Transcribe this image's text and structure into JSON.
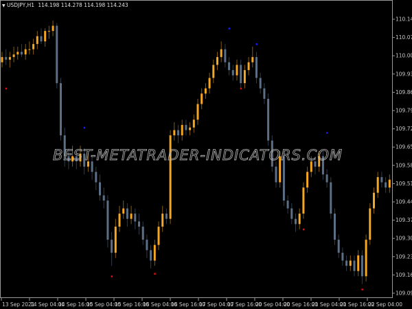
{
  "header": {
    "dropdown_icon": "triangle-down-icon",
    "symbol": "USDJPY,H1",
    "open": "114.198",
    "high": "114.278",
    "low": "114.198",
    "close": "114.243"
  },
  "watermark": "BEST-METATRADER-INDICATORS.COM",
  "colors": {
    "background": "#000000",
    "bull": "#f5a623",
    "bear": "#5b6f87",
    "axis": "#9a9a9a",
    "high_marker": "#1a1aff",
    "low_marker": "#e01010"
  },
  "chart_data": {
    "type": "candlestick",
    "title": "",
    "ylim": [
      109.07,
      110.17
    ],
    "y_ticks": [
      "110.145",
      "110.075",
      "110.005",
      "109.935",
      "109.865",
      "109.795",
      "109.725",
      "109.655",
      "109.585",
      "109.515",
      "109.445",
      "109.375",
      "109.305",
      "109.235",
      "109.165",
      "109.095"
    ],
    "x_ticks": [
      "13 Sep 2021",
      "14 Sep 04:00",
      "14 Sep 16:00",
      "15 Sep 04:00",
      "15 Sep 16:00",
      "16 Sep 04:00",
      "16 Sep 16:00",
      "17 Sep 04:00",
      "17 Sep 16:00",
      "20 Sep 04:00",
      "20 Sep 16:00",
      "21 Sep 04:00",
      "21 Sep 16:00",
      "22 Sep 04:00"
    ],
    "ohlc": [
      [
        109.98,
        110.02,
        109.96,
        110.0
      ],
      [
        110.0,
        110.03,
        109.97,
        109.99
      ],
      [
        109.99,
        110.02,
        109.96,
        110.0
      ],
      [
        110.0,
        110.04,
        109.98,
        110.01
      ],
      [
        110.01,
        110.04,
        109.99,
        110.02
      ],
      [
        110.02,
        110.05,
        110.0,
        110.01
      ],
      [
        110.01,
        110.05,
        109.99,
        110.03
      ],
      [
        110.03,
        110.06,
        110.01,
        110.03
      ],
      [
        110.03,
        110.07,
        110.01,
        110.05
      ],
      [
        110.05,
        110.1,
        110.03,
        110.08
      ],
      [
        110.08,
        110.11,
        110.05,
        110.06
      ],
      [
        110.06,
        110.11,
        110.04,
        110.1
      ],
      [
        110.1,
        110.12,
        110.07,
        110.1
      ],
      [
        110.1,
        110.14,
        110.08,
        110.12
      ],
      [
        110.12,
        110.13,
        109.88,
        109.9
      ],
      [
        109.9,
        109.92,
        109.68,
        109.7
      ],
      [
        109.7,
        109.73,
        109.58,
        109.62
      ],
      [
        109.62,
        109.65,
        109.57,
        109.6
      ],
      [
        109.6,
        109.66,
        109.58,
        109.62
      ],
      [
        109.62,
        109.64,
        109.57,
        109.6
      ],
      [
        109.6,
        109.66,
        109.58,
        109.63
      ],
      [
        109.63,
        109.65,
        109.55,
        109.58
      ],
      [
        109.58,
        109.63,
        109.56,
        109.6
      ],
      [
        109.6,
        109.62,
        109.53,
        109.56
      ],
      [
        109.56,
        109.58,
        109.49,
        109.52
      ],
      [
        109.52,
        109.55,
        109.45,
        109.47
      ],
      [
        109.47,
        109.5,
        109.42,
        109.45
      ],
      [
        109.45,
        109.47,
        109.27,
        109.3
      ],
      [
        109.3,
        109.33,
        109.2,
        109.25
      ],
      [
        109.25,
        109.38,
        109.23,
        109.35
      ],
      [
        109.35,
        109.43,
        109.33,
        109.4
      ],
      [
        109.4,
        109.45,
        109.38,
        109.42
      ],
      [
        109.42,
        109.44,
        109.35,
        109.38
      ],
      [
        109.38,
        109.43,
        109.36,
        109.4
      ],
      [
        109.4,
        109.42,
        109.34,
        109.37
      ],
      [
        109.37,
        109.4,
        109.32,
        109.35
      ],
      [
        109.35,
        109.37,
        109.28,
        109.3
      ],
      [
        109.3,
        109.32,
        109.23,
        109.26
      ],
      [
        109.26,
        109.28,
        109.19,
        109.22
      ],
      [
        109.22,
        109.3,
        109.2,
        109.28
      ],
      [
        109.28,
        109.37,
        109.26,
        109.35
      ],
      [
        109.35,
        109.43,
        109.33,
        109.4
      ],
      [
        109.4,
        109.42,
        109.36,
        109.38
      ],
      [
        109.38,
        109.72,
        109.36,
        109.7
      ],
      [
        109.7,
        109.75,
        109.68,
        109.72
      ],
      [
        109.72,
        109.74,
        109.67,
        109.7
      ],
      [
        109.7,
        109.76,
        109.68,
        109.74
      ],
      [
        109.74,
        109.76,
        109.7,
        109.72
      ],
      [
        109.72,
        109.75,
        109.7,
        109.73
      ],
      [
        109.73,
        109.78,
        109.71,
        109.76
      ],
      [
        109.76,
        109.84,
        109.74,
        109.82
      ],
      [
        109.82,
        109.88,
        109.8,
        109.86
      ],
      [
        109.86,
        109.9,
        109.84,
        109.88
      ],
      [
        109.88,
        109.94,
        109.86,
        109.92
      ],
      [
        109.92,
        109.99,
        109.9,
        109.97
      ],
      [
        109.97,
        110.02,
        109.95,
        110.0
      ],
      [
        110.0,
        110.06,
        109.98,
        110.03
      ],
      [
        110.03,
        110.05,
        109.96,
        109.98
      ],
      [
        109.98,
        110.0,
        109.93,
        109.95
      ],
      [
        109.95,
        109.97,
        109.91,
        109.93
      ],
      [
        109.93,
        109.99,
        109.91,
        109.97
      ],
      [
        109.97,
        109.99,
        109.88,
        109.9
      ],
      [
        109.9,
        109.97,
        109.88,
        109.95
      ],
      [
        109.95,
        110.0,
        109.93,
        109.98
      ],
      [
        109.98,
        110.04,
        109.96,
        110.0
      ],
      [
        110.0,
        110.02,
        109.9,
        109.92
      ],
      [
        109.92,
        109.94,
        109.86,
        109.88
      ],
      [
        109.88,
        109.9,
        109.82,
        109.84
      ],
      [
        109.84,
        109.86,
        109.66,
        109.68
      ],
      [
        109.68,
        109.7,
        109.56,
        109.58
      ],
      [
        109.58,
        109.6,
        109.5,
        109.52
      ],
      [
        109.52,
        109.64,
        109.5,
        109.62
      ],
      [
        109.62,
        109.64,
        109.43,
        109.45
      ],
      [
        109.45,
        109.47,
        109.4,
        109.42
      ],
      [
        109.42,
        109.44,
        109.36,
        109.38
      ],
      [
        109.38,
        109.4,
        109.33,
        109.36
      ],
      [
        109.36,
        109.42,
        109.34,
        109.4
      ],
      [
        109.4,
        109.52,
        109.38,
        109.5
      ],
      [
        109.5,
        109.58,
        109.48,
        109.56
      ],
      [
        109.56,
        109.62,
        109.54,
        109.6
      ],
      [
        109.6,
        109.62,
        109.55,
        109.58
      ],
      [
        109.58,
        109.64,
        109.56,
        109.62
      ],
      [
        109.62,
        109.64,
        109.53,
        109.55
      ],
      [
        109.55,
        109.57,
        109.5,
        109.52
      ],
      [
        109.52,
        109.54,
        109.38,
        109.4
      ],
      [
        109.4,
        109.42,
        109.28,
        109.3
      ],
      [
        109.3,
        109.32,
        109.23,
        109.25
      ],
      [
        109.25,
        109.27,
        109.2,
        109.22
      ],
      [
        109.22,
        109.24,
        109.18,
        109.2
      ],
      [
        109.2,
        109.24,
        109.18,
        109.22
      ],
      [
        109.22,
        109.24,
        109.16,
        109.18
      ],
      [
        109.18,
        109.26,
        109.16,
        109.24
      ],
      [
        109.24,
        109.26,
        109.13,
        109.16
      ],
      [
        109.16,
        109.32,
        109.14,
        109.3
      ],
      [
        109.3,
        109.44,
        109.28,
        109.42
      ],
      [
        109.42,
        109.5,
        109.4,
        109.48
      ],
      [
        109.48,
        109.56,
        109.46,
        109.54
      ],
      [
        109.54,
        109.56,
        109.5,
        109.52
      ],
      [
        109.52,
        109.54,
        109.48,
        109.5
      ],
      [
        109.5,
        109.55,
        109.48,
        109.53
      ]
    ],
    "markers": [
      {
        "type": "low",
        "bar": 1,
        "price": 109.88
      },
      {
        "type": "low",
        "bar": 28,
        "price": 109.16
      },
      {
        "type": "low",
        "bar": 39,
        "price": 109.17
      },
      {
        "type": "low",
        "bar": 61,
        "price": 109.88
      },
      {
        "type": "low",
        "bar": 77,
        "price": 109.34
      },
      {
        "type": "low",
        "bar": 92,
        "price": 109.11
      },
      {
        "type": "high",
        "bar": 21,
        "price": 109.73
      },
      {
        "type": "high",
        "bar": 58,
        "price": 110.11
      },
      {
        "type": "high",
        "bar": 65,
        "price": 110.05
      },
      {
        "type": "high",
        "bar": 83,
        "price": 109.71
      }
    ]
  }
}
